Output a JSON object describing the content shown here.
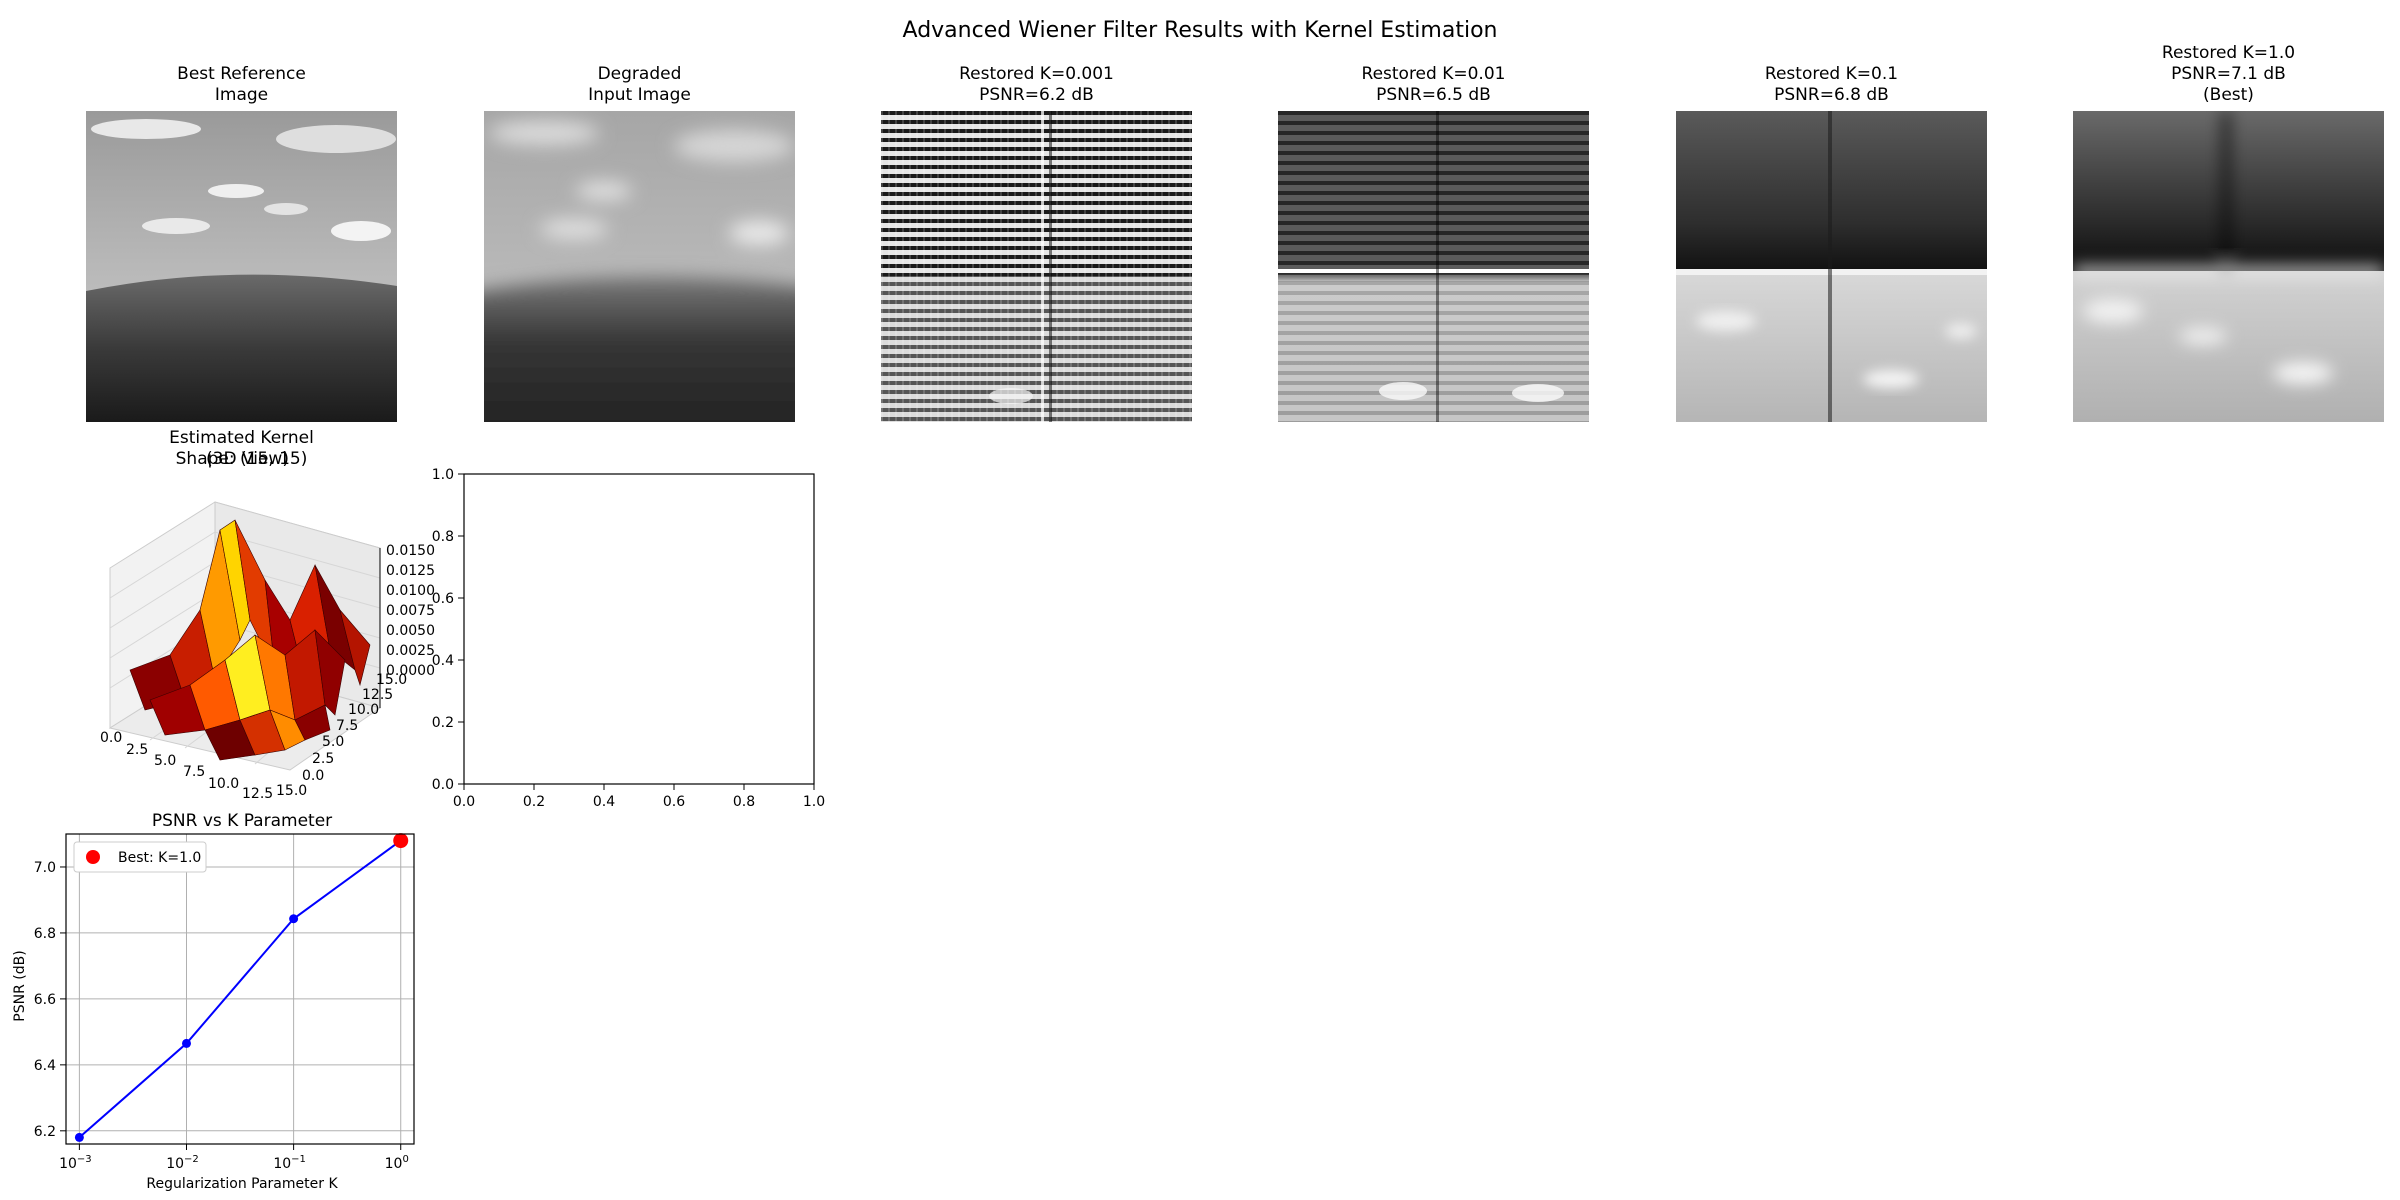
{
  "figure": {
    "suptitle": "Advanced Wiener Filter Results with Kernel Estimation"
  },
  "panels": [
    {
      "title": "Best Reference\nImage",
      "content": "grayscale landscape: sky with clouds above a rolling grassy hill"
    },
    {
      "title": "Degraded\nInput Image",
      "content": "blurred version of the landscape"
    },
    {
      "title": "Restored K=0.001\nPSNR=6.2 dB",
      "content": "restoration with strong horizontal ringing artifacts"
    },
    {
      "title": "Restored K=0.01\nPSNR=6.5 dB",
      "content": "restoration with moderate ringing artifacts"
    },
    {
      "title": "Restored K=0.1\nPSNR=6.8 dB",
      "content": "restoration, dark top half, lighter bottom half with clouds"
    },
    {
      "title": "Restored K=1.0\nPSNR=7.1 dB\n(Best)",
      "content": "smooth restoration, dark top half, light bottom half"
    }
  ],
  "kernel_panel": {
    "title_line1": "Estimated Kernel",
    "title_line2a": "Shape: (15, 15)",
    "title_line2b": "(3D View)",
    "z_ticks": [
      "0.0150",
      "0.0125",
      "0.0100",
      "0.0075",
      "0.0050",
      "0.0025",
      "0.0000"
    ],
    "x_ticks": [
      "0.0",
      "2.5",
      "5.0",
      "7.5",
      "10.0",
      "12.5",
      "15.0"
    ],
    "y_ticks": [
      "0.0",
      "2.5",
      "5.0",
      "7.5",
      "10.0",
      "12.5",
      "15.0"
    ],
    "colormap": "hot"
  },
  "empty_axes": {
    "x_ticks": [
      "0.0",
      "0.2",
      "0.4",
      "0.6",
      "0.8",
      "1.0"
    ],
    "y_ticks": [
      "0.0",
      "0.2",
      "0.4",
      "0.6",
      "0.8",
      "1.0"
    ]
  },
  "psnr_plot": {
    "title": "PSNR vs K Parameter",
    "xlabel": "Regularization Parameter K",
    "ylabel": "PSNR (dB)",
    "legend_label": "Best: K=1.0",
    "y_ticks": [
      "6.2",
      "6.4",
      "6.6",
      "6.8",
      "7.0"
    ],
    "x_tick_exponents": [
      "-3",
      "-2",
      "-1",
      "0"
    ]
  },
  "chart_data": {
    "type": "line",
    "title": "PSNR vs K Parameter",
    "xlabel": "Regularization Parameter K",
    "ylabel": "PSNR (dB)",
    "x_scale": "log",
    "x": [
      0.001,
      0.01,
      0.1,
      1.0
    ],
    "series": [
      {
        "values": [
          6.18,
          6.465,
          6.843,
          7.08
        ],
        "color": "#0000ff",
        "marker": "circle"
      }
    ],
    "highlight": {
      "name": "Best: K=1.0",
      "x": 1.0,
      "y": 7.08,
      "color": "#ff0000"
    },
    "xlim": [
      0.00075,
      1.33
    ],
    "ylim": [
      6.16,
      7.1
    ],
    "grid": true,
    "legend_position": "upper left"
  },
  "colors": {
    "series": "#0000ff",
    "best": "#ff0000",
    "grid": "#b0b0b0"
  }
}
